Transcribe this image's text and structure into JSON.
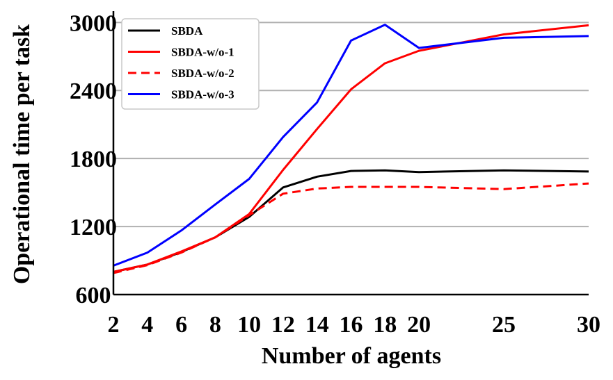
{
  "chart_data": {
    "type": "line",
    "title": "",
    "xlabel": "Number of agents",
    "ylabel": "Operational time per task",
    "x": [
      2,
      4,
      6,
      8,
      10,
      12,
      14,
      16,
      18,
      20,
      25,
      30
    ],
    "xticks": [
      "2",
      "4",
      "6",
      "8",
      "10",
      "12",
      "14",
      "16",
      "18",
      "20",
      "25",
      "30"
    ],
    "xlim": [
      2,
      30
    ],
    "yticks": [
      "600",
      "1200",
      "1800",
      "2400",
      "3000"
    ],
    "ylim": [
      600,
      3100
    ],
    "grid": "horizontal",
    "legend_position": "top-left",
    "series": [
      {
        "name": "SBDA",
        "color": "#000000",
        "style": "solid",
        "values": [
          800,
          865,
          975,
          1105,
          1285,
          1545,
          1640,
          1690,
          1695,
          1680,
          1695,
          1685
        ]
      },
      {
        "name": "SBDA-w/o-1",
        "color": "#ff0000",
        "style": "solid",
        "values": [
          800,
          865,
          980,
          1105,
          1310,
          1700,
          2060,
          2410,
          2640,
          2750,
          2895,
          2975
        ]
      },
      {
        "name": "SBDA-w/o-2",
        "color": "#ff0000",
        "style": "dashed",
        "values": [
          790,
          860,
          970,
          1105,
          1300,
          1490,
          1535,
          1550,
          1550,
          1550,
          1530,
          1580
        ]
      },
      {
        "name": "SBDA-w/o-3",
        "color": "#0000ff",
        "style": "solid",
        "values": [
          855,
          970,
          1165,
          1395,
          1620,
          1990,
          2295,
          2840,
          2980,
          2775,
          2865,
          2880
        ]
      }
    ]
  }
}
